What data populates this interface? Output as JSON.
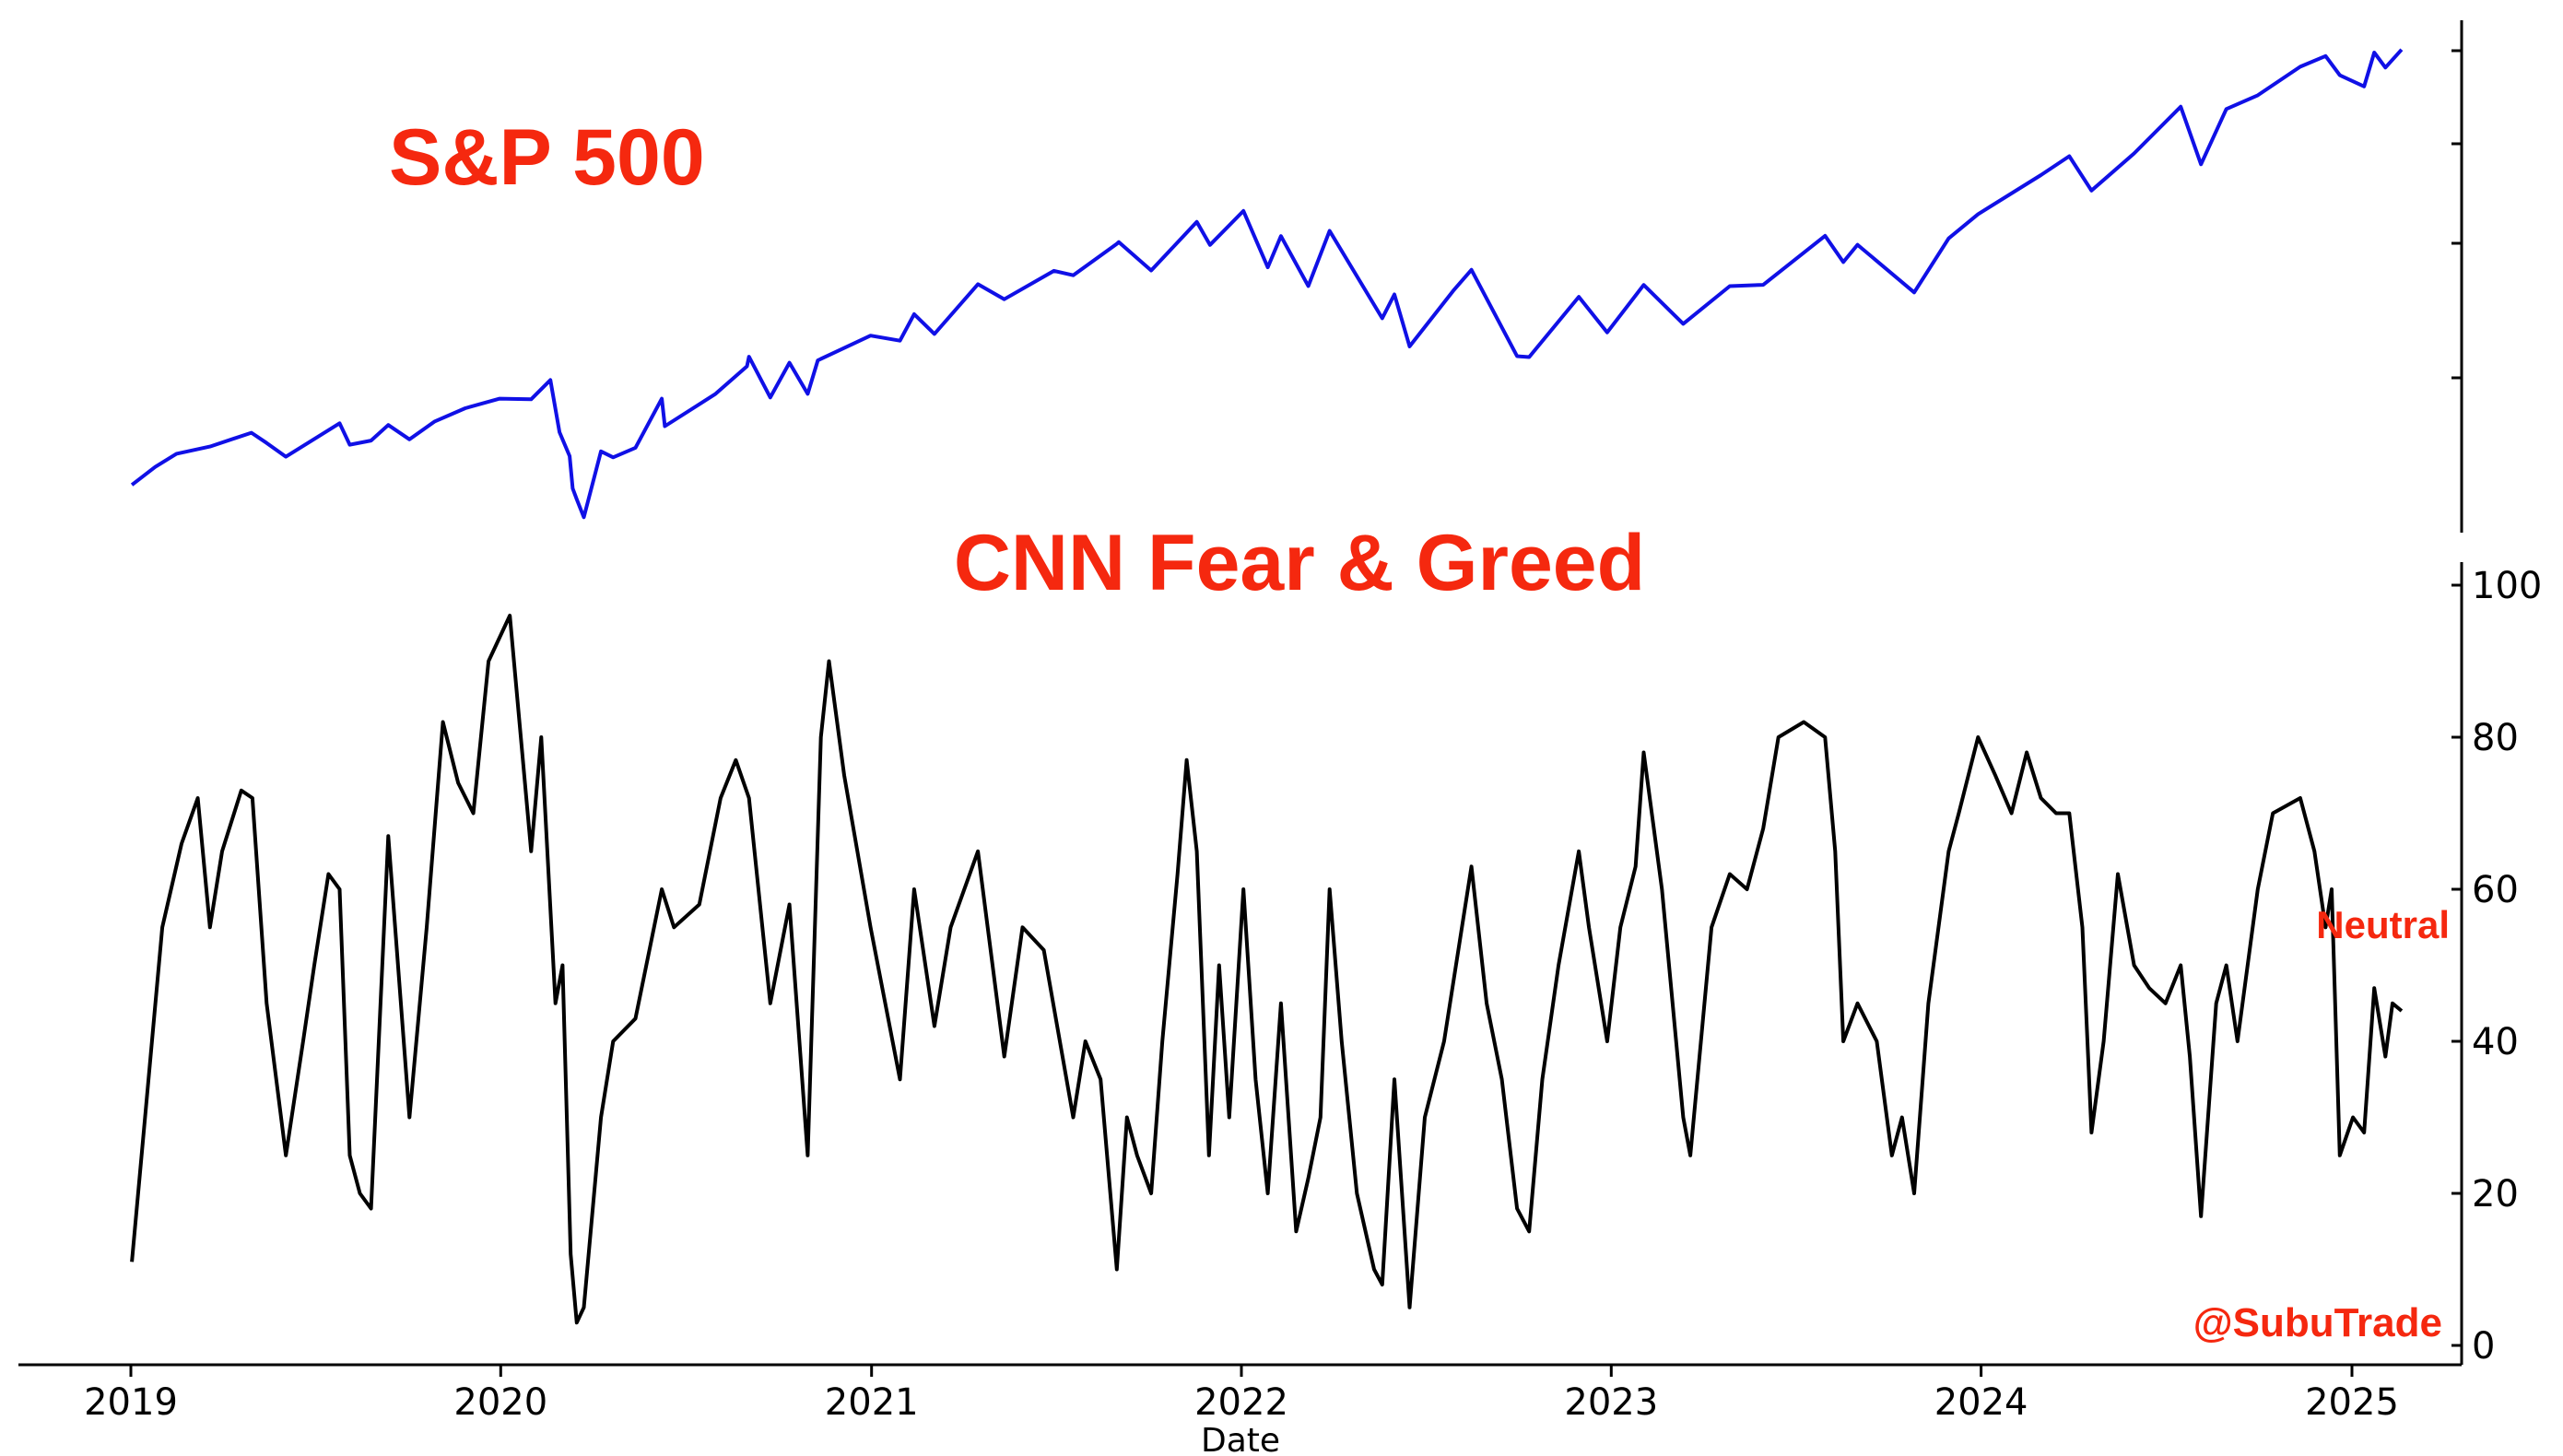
{
  "chart_data": [
    {
      "type": "line",
      "title": "S&P 500",
      "y_axis": "right, no tick labels",
      "x_range": [
        "2019-01-01",
        "2025-02-20"
      ],
      "y_range": [
        2250,
        6250
      ],
      "series": [
        {
          "color": "#1010e6",
          "points": [
            [
              "2019-01-02",
              2510
            ],
            [
              "2019-01-25",
              2660
            ],
            [
              "2019-02-15",
              2770
            ],
            [
              "2019-03-20",
              2830
            ],
            [
              "2019-04-30",
              2945
            ],
            [
              "2019-05-15",
              2860
            ],
            [
              "2019-06-03",
              2745
            ],
            [
              "2019-07-26",
              3025
            ],
            [
              "2019-08-05",
              2845
            ],
            [
              "2019-08-26",
              2880
            ],
            [
              "2019-09-12",
              3010
            ],
            [
              "2019-10-03",
              2890
            ],
            [
              "2019-10-28",
              3040
            ],
            [
              "2019-11-27",
              3150
            ],
            [
              "2019-12-31",
              3230
            ],
            [
              "2020-01-31",
              3225
            ],
            [
              "2020-02-19",
              3385
            ],
            [
              "2020-02-28",
              2950
            ],
            [
              "2020-03-09",
              2750
            ],
            [
              "2020-03-12",
              2480
            ],
            [
              "2020-03-16",
              2390
            ],
            [
              "2020-03-23",
              2240
            ],
            [
              "2020-04-09",
              2790
            ],
            [
              "2020-04-21",
              2740
            ],
            [
              "2020-05-13",
              2820
            ],
            [
              "2020-06-08",
              3230
            ],
            [
              "2020-06-11",
              3000
            ],
            [
              "2020-07-31",
              3270
            ],
            [
              "2020-08-31",
              3500
            ],
            [
              "2020-09-02",
              3580
            ],
            [
              "2020-09-23",
              3240
            ],
            [
              "2020-10-12",
              3530
            ],
            [
              "2020-10-30",
              3270
            ],
            [
              "2020-11-09",
              3550
            ],
            [
              "2020-12-31",
              3756
            ],
            [
              "2021-01-29",
              3714
            ],
            [
              "2021-02-12",
              3935
            ],
            [
              "2021-03-04",
              3770
            ],
            [
              "2021-04-16",
              4185
            ],
            [
              "2021-05-12",
              4060
            ],
            [
              "2021-06-30",
              4297
            ],
            [
              "2021-07-19",
              4260
            ],
            [
              "2021-08-31",
              4522
            ],
            [
              "2021-09-02",
              4537
            ],
            [
              "2021-10-04",
              4300
            ],
            [
              "2021-11-18",
              4705
            ],
            [
              "2021-12-01",
              4513
            ],
            [
              "2022-01-03",
              4797
            ],
            [
              "2022-01-27",
              4326
            ],
            [
              "2022-02-09",
              4587
            ],
            [
              "2022-03-08",
              4170
            ],
            [
              "2022-03-29",
              4631
            ],
            [
              "2022-05-20",
              3901
            ],
            [
              "2022-06-01",
              4100
            ],
            [
              "2022-06-16",
              3666
            ],
            [
              "2022-07-29",
              4130
            ],
            [
              "2022-08-16",
              4305
            ],
            [
              "2022-09-30",
              3585
            ],
            [
              "2022-10-12",
              3577
            ],
            [
              "2022-11-30",
              4080
            ],
            [
              "2022-12-28",
              3783
            ],
            [
              "2023-02-02",
              4179
            ],
            [
              "2023-03-13",
              3855
            ],
            [
              "2023-04-28",
              4169
            ],
            [
              "2023-05-31",
              4180
            ],
            [
              "2023-07-31",
              4589
            ],
            [
              "2023-08-18",
              4370
            ],
            [
              "2023-09-01",
              4515
            ],
            [
              "2023-10-27",
              4117
            ],
            [
              "2023-11-30",
              4568
            ],
            [
              "2023-12-29",
              4770
            ],
            [
              "2024-02-29",
              5096
            ],
            [
              "2024-03-28",
              5254
            ],
            [
              "2024-04-19",
              4967
            ],
            [
              "2024-05-31",
              5277
            ],
            [
              "2024-07-16",
              5667
            ],
            [
              "2024-08-05",
              5186
            ],
            [
              "2024-08-30",
              5648
            ],
            [
              "2024-09-30",
              5762
            ],
            [
              "2024-11-11",
              6001
            ],
            [
              "2024-12-06",
              6090
            ],
            [
              "2024-12-20",
              5930
            ],
            [
              "2025-01-13",
              5836
            ],
            [
              "2025-01-23",
              6119
            ],
            [
              "2025-02-03",
              5994
            ],
            [
              "2025-02-19",
              6144
            ]
          ]
        }
      ]
    },
    {
      "type": "line",
      "title": "CNN Fear & Greed",
      "xlabel": "Date",
      "x_range": [
        "2018-12-01",
        "2025-04-10"
      ],
      "ylim": [
        -3,
        101
      ],
      "y_ticks": [
        "0",
        "20",
        "40",
        "60",
        "80",
        "100"
      ],
      "x_ticks": [
        "2019",
        "2020",
        "2021",
        "2022",
        "2023",
        "2024",
        "2025"
      ],
      "annotations": [
        "Neutral",
        "@SubuTrade"
      ],
      "series": [
        {
          "color": "#000000",
          "points": [
            [
              "2019-01-02",
              11
            ],
            [
              "2019-01-15",
              30
            ],
            [
              "2019-02-01",
              55
            ],
            [
              "2019-02-20",
              66
            ],
            [
              "2019-03-08",
              72
            ],
            [
              "2019-03-20",
              55
            ],
            [
              "2019-04-01",
              65
            ],
            [
              "2019-04-20",
              73
            ],
            [
              "2019-05-01",
              72
            ],
            [
              "2019-05-15",
              45
            ],
            [
              "2019-06-03",
              25
            ],
            [
              "2019-06-20",
              40
            ],
            [
              "2019-07-01",
              50
            ],
            [
              "2019-07-15",
              62
            ],
            [
              "2019-07-26",
              60
            ],
            [
              "2019-08-05",
              25
            ],
            [
              "2019-08-15",
              20
            ],
            [
              "2019-08-26",
              18
            ],
            [
              "2019-09-12",
              67
            ],
            [
              "2019-10-03",
              30
            ],
            [
              "2019-10-20",
              55
            ],
            [
              "2019-11-05",
              82
            ],
            [
              "2019-11-20",
              74
            ],
            [
              "2019-12-05",
              70
            ],
            [
              "2019-12-20",
              90
            ],
            [
              "2020-01-10",
              96
            ],
            [
              "2020-01-31",
              65
            ],
            [
              "2020-02-10",
              80
            ],
            [
              "2020-02-24",
              45
            ],
            [
              "2020-03-02",
              50
            ],
            [
              "2020-03-10",
              12
            ],
            [
              "2020-03-16",
              3
            ],
            [
              "2020-03-23",
              5
            ],
            [
              "2020-04-09",
              30
            ],
            [
              "2020-04-21",
              40
            ],
            [
              "2020-05-13",
              43
            ],
            [
              "2020-06-08",
              60
            ],
            [
              "2020-06-20",
              55
            ],
            [
              "2020-07-15",
              58
            ],
            [
              "2020-08-05",
              72
            ],
            [
              "2020-08-20",
              77
            ],
            [
              "2020-09-02",
              72
            ],
            [
              "2020-09-23",
              45
            ],
            [
              "2020-10-12",
              58
            ],
            [
              "2020-10-30",
              25
            ],
            [
              "2020-11-12",
              80
            ],
            [
              "2020-11-20",
              90
            ],
            [
              "2020-12-05",
              75
            ],
            [
              "2020-12-31",
              55
            ],
            [
              "2021-01-29",
              35
            ],
            [
              "2021-02-12",
              60
            ],
            [
              "2021-03-04",
              42
            ],
            [
              "2021-03-20",
              55
            ],
            [
              "2021-04-16",
              65
            ],
            [
              "2021-05-12",
              38
            ],
            [
              "2021-05-30",
              55
            ],
            [
              "2021-06-20",
              52
            ],
            [
              "2021-07-19",
              30
            ],
            [
              "2021-07-31",
              40
            ],
            [
              "2021-08-15",
              35
            ],
            [
              "2021-08-31",
              10
            ],
            [
              "2021-09-10",
              30
            ],
            [
              "2021-09-20",
              25
            ],
            [
              "2021-10-04",
              20
            ],
            [
              "2021-10-15",
              40
            ],
            [
              "2021-10-30",
              62
            ],
            [
              "2021-11-08",
              77
            ],
            [
              "2021-11-18",
              65
            ],
            [
              "2021-11-30",
              25
            ],
            [
              "2021-12-10",
              50
            ],
            [
              "2021-12-20",
              30
            ],
            [
              "2022-01-03",
              60
            ],
            [
              "2022-01-15",
              35
            ],
            [
              "2022-01-27",
              20
            ],
            [
              "2022-02-09",
              45
            ],
            [
              "2022-02-24",
              15
            ],
            [
              "2022-03-08",
              22
            ],
            [
              "2022-03-20",
              30
            ],
            [
              "2022-03-29",
              60
            ],
            [
              "2022-04-10",
              40
            ],
            [
              "2022-04-25",
              20
            ],
            [
              "2022-05-12",
              10
            ],
            [
              "2022-05-20",
              8
            ],
            [
              "2022-06-01",
              35
            ],
            [
              "2022-06-16",
              5
            ],
            [
              "2022-07-01",
              30
            ],
            [
              "2022-07-20",
              40
            ],
            [
              "2022-08-16",
              63
            ],
            [
              "2022-08-31",
              45
            ],
            [
              "2022-09-15",
              35
            ],
            [
              "2022-09-30",
              18
            ],
            [
              "2022-10-12",
              15
            ],
            [
              "2022-10-25",
              35
            ],
            [
              "2022-11-10",
              50
            ],
            [
              "2022-11-30",
              65
            ],
            [
              "2022-12-10",
              55
            ],
            [
              "2022-12-28",
              40
            ],
            [
              "2023-01-10",
              55
            ],
            [
              "2023-01-25",
              63
            ],
            [
              "2023-02-02",
              78
            ],
            [
              "2023-02-20",
              60
            ],
            [
              "2023-03-13",
              30
            ],
            [
              "2023-03-20",
              25
            ],
            [
              "2023-04-10",
              55
            ],
            [
              "2023-04-28",
              62
            ],
            [
              "2023-05-15",
              60
            ],
            [
              "2023-05-31",
              68
            ],
            [
              "2023-06-15",
              80
            ],
            [
              "2023-07-10",
              82
            ],
            [
              "2023-07-31",
              80
            ],
            [
              "2023-08-10",
              65
            ],
            [
              "2023-08-18",
              40
            ],
            [
              "2023-09-01",
              45
            ],
            [
              "2023-09-20",
              40
            ],
            [
              "2023-10-05",
              25
            ],
            [
              "2023-10-15",
              30
            ],
            [
              "2023-10-27",
              20
            ],
            [
              "2023-11-10",
              45
            ],
            [
              "2023-11-30",
              65
            ],
            [
              "2023-12-10",
              70
            ],
            [
              "2023-12-29",
              80
            ],
            [
              "2024-01-15",
              75
            ],
            [
              "2024-01-31",
              70
            ],
            [
              "2024-02-15",
              78
            ],
            [
              "2024-02-29",
              72
            ],
            [
              "2024-03-15",
              70
            ],
            [
              "2024-03-28",
              70
            ],
            [
              "2024-04-10",
              55
            ],
            [
              "2024-04-19",
              28
            ],
            [
              "2024-05-01",
              40
            ],
            [
              "2024-05-15",
              62
            ],
            [
              "2024-05-31",
              50
            ],
            [
              "2024-06-15",
              47
            ],
            [
              "2024-07-01",
              45
            ],
            [
              "2024-07-16",
              50
            ],
            [
              "2024-07-25",
              38
            ],
            [
              "2024-08-05",
              17
            ],
            [
              "2024-08-20",
              45
            ],
            [
              "2024-08-30",
              50
            ],
            [
              "2024-09-10",
              40
            ],
            [
              "2024-09-30",
              60
            ],
            [
              "2024-10-15",
              70
            ],
            [
              "2024-11-11",
              72
            ],
            [
              "2024-11-25",
              65
            ],
            [
              "2024-12-06",
              55
            ],
            [
              "2024-12-12",
              60
            ],
            [
              "2024-12-20",
              25
            ],
            [
              "2025-01-02",
              30
            ],
            [
              "2025-01-13",
              28
            ],
            [
              "2025-01-23",
              47
            ],
            [
              "2025-02-03",
              38
            ],
            [
              "2025-02-10",
              45
            ],
            [
              "2025-02-19",
              44
            ]
          ]
        }
      ]
    }
  ]
}
